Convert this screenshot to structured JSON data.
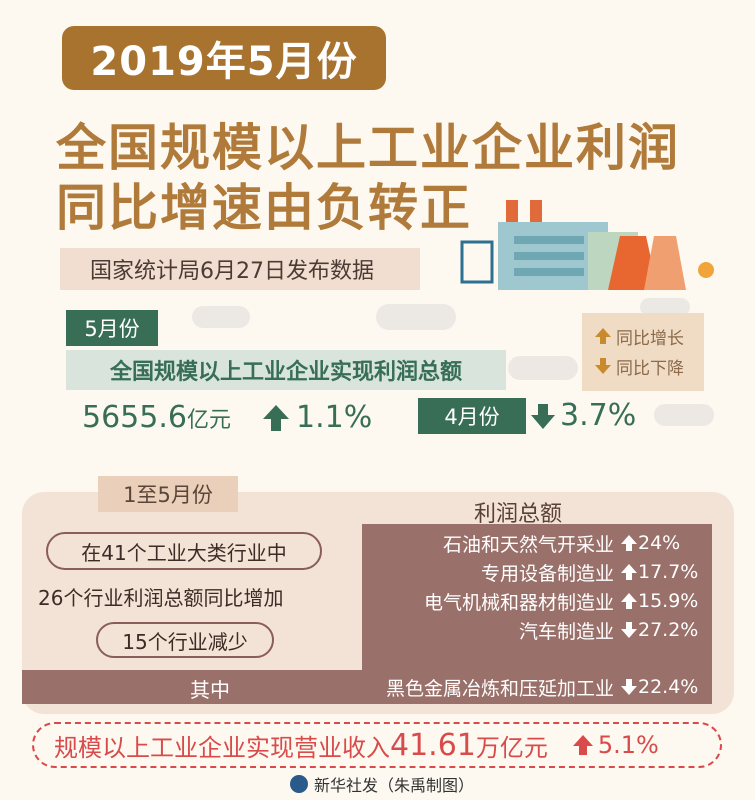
{
  "header": {
    "date_badge": "2019年5月份",
    "title_line1": "全国规模以上工业企业利润",
    "title_line2": "同比增速由负转正",
    "source": "国家统计局6月27日发布数据"
  },
  "may": {
    "tag": "5月份",
    "subhead": "全国规模以上工业企业实现利润总额",
    "value": "5655.6",
    "unit": "亿元",
    "change": "1.1%",
    "april_tag": "4月份",
    "april_change": "3.7%"
  },
  "legend": {
    "up": "同比增长",
    "down": "同比下降"
  },
  "jan_may": {
    "tag": "1至5月份",
    "industries_total": "在41个工业大类行业中",
    "increase": "26个行业利润总额同比增加",
    "decrease": "15个行业减少",
    "table_header": "利润总额",
    "qizhong": "其中",
    "rows": [
      {
        "industry": "石油和天然气开采业",
        "direction": "up",
        "change": "24%"
      },
      {
        "industry": "专用设备制造业",
        "direction": "up",
        "change": "17.7%"
      },
      {
        "industry": "电气机械和器材制造业",
        "direction": "up",
        "change": "15.9%"
      },
      {
        "industry": "汽车制造业",
        "direction": "down",
        "change": "27.2%"
      },
      {
        "industry": "黑色金属冶炼和压延加工业",
        "direction": "down",
        "change": "22.4%"
      }
    ]
  },
  "revenue": {
    "text": "规模以上工业企业实现营业收入",
    "value": "41.61",
    "unit": "万亿元",
    "change": "5.1%"
  },
  "credit": "新华社发（朱禹制图）",
  "colors": {
    "green": "#376e55",
    "brown": "#a8722f",
    "mauve": "#9a706a",
    "red": "#d94a4a"
  }
}
